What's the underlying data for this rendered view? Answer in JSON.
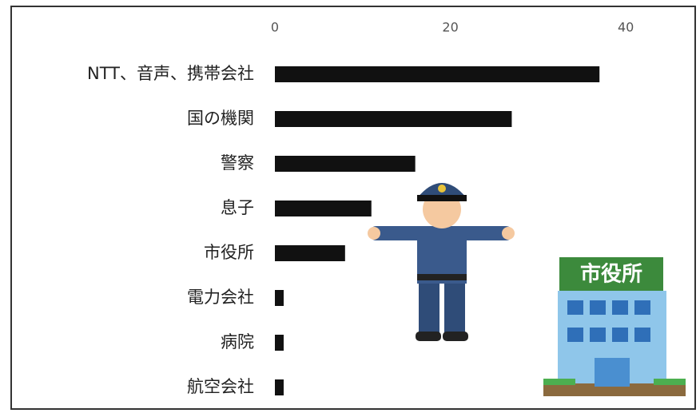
{
  "chart_data": {
    "type": "barh",
    "categories": [
      "NTT、音声、携帯会社",
      "国の機関",
      "警察",
      "息子",
      "市役所",
      "電力会社",
      "病院",
      "航空会社"
    ],
    "values": [
      37,
      27,
      16,
      11,
      8,
      1,
      1,
      1
    ],
    "color": "#111111",
    "xlim": [
      0,
      47
    ],
    "xticks": [
      0,
      20,
      40
    ],
    "grid": false,
    "building_sign": "市役所"
  }
}
